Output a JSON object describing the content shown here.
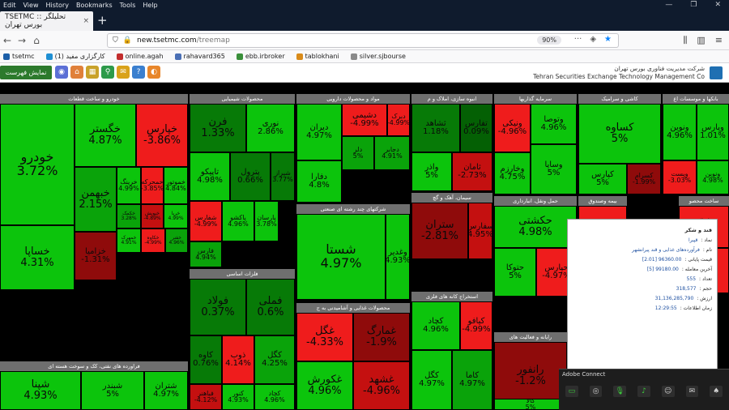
{
  "menubar": {
    "items": [
      "Edit",
      "View",
      "History",
      "Bookmarks",
      "Tools",
      "Help"
    ]
  },
  "tab": {
    "title": "TSETMC :: تحلیلگر بورس تهران",
    "close": "×"
  },
  "navbar": {
    "url_host": "new.tsetmc.com",
    "url_path": "/treemap",
    "zoom": "90%"
  },
  "bookmarks": [
    {
      "label": "tsetmc",
      "color": "#1b5ea8"
    },
    {
      "label": "کارگزاری مفید (1)",
      "color": "#1f8fd3"
    },
    {
      "label": "online.agah",
      "color": "#c22d2d"
    },
    {
      "label": "rahavard365",
      "color": "#4a6fb5"
    },
    {
      "label": "ebb.irbroker",
      "color": "#3a8f3a"
    },
    {
      "label": "tablokhani",
      "color": "#d98b1a"
    },
    {
      "label": "silver.sjbourse",
      "color": "#8a8a8a"
    }
  ],
  "site": {
    "show_button": "نمایش فهرست",
    "brand_fa": "شرکت مدیریت فناوری بورس تهران",
    "brand_en": "Tehran Securities Exchange Technology Management Co"
  },
  "sectors": [
    {
      "title": "خودرو و ساخت قطعات",
      "cells": [
        {
          "name": "خودرو",
          "pct": "3.72%",
          "c": "g1"
        },
        {
          "name": "خگستر",
          "pct": "4.87%",
          "c": "g1"
        },
        {
          "name": "خپارس",
          "pct": "-3.86%",
          "c": "r1"
        },
        {
          "name": "خساپا",
          "pct": "4.31%",
          "c": "g1"
        },
        {
          "name": "خبهمن",
          "pct": "2.15%",
          "c": "g2"
        },
        {
          "name": "خرینگ",
          "pct": "4.99%",
          "c": "g1"
        },
        {
          "name": "خمحرکه",
          "pct": "-3.85%",
          "c": "r1"
        },
        {
          "name": "خموتور",
          "pct": "4.84%",
          "c": "g1"
        },
        {
          "name": "خکمک",
          "pct": "3.28%",
          "c": "g2"
        },
        {
          "name": "خزامیا",
          "pct": "-1.31%",
          "c": "r3"
        },
        {
          "name": "خمهرک",
          "pct": "4.91%",
          "c": "g1"
        },
        {
          "name": "خریا",
          "pct": "4.99%",
          "c": "g1"
        },
        {
          "name": "خپویش",
          "pct": "-4.89%",
          "c": "r2"
        },
        {
          "name": "خکاوه",
          "pct": "-4.99%",
          "c": "r1"
        },
        {
          "name": "خفنر",
          "pct": "4.96%",
          "c": "g2"
        }
      ]
    },
    {
      "title": "فراورده های نفتی، کک و سوخت هسته ای",
      "cells": [
        {
          "name": "شپنا",
          "pct": "4.93%",
          "c": "g1"
        },
        {
          "name": "شبندر",
          "pct": "5%",
          "c": "g1"
        },
        {
          "name": "شتران",
          "pct": "4.97%",
          "c": "g1"
        },
        {
          "name": "شبریز",
          "pct": "3.23%",
          "c": "g1"
        },
        {
          "name": "ونفت",
          "pct": "-2.24%",
          "c": "r2"
        }
      ]
    },
    {
      "title": "محصولات شیمیایی",
      "cells": [
        {
          "name": "فرن",
          "pct": "1.33%",
          "c": "g3"
        },
        {
          "name": "نوری",
          "pct": "2.86%",
          "c": "g1"
        },
        {
          "name": "تاپیکو",
          "pct": "4.98%",
          "c": "g1"
        },
        {
          "name": "پترول",
          "pct": "0.66%",
          "c": "g3"
        },
        {
          "name": "شیراز",
          "pct": "3.77%",
          "c": "g3"
        },
        {
          "name": "شفارس",
          "pct": "-4.99%",
          "c": "r1"
        },
        {
          "name": "پاکشو",
          "pct": "4.96%",
          "c": "g1"
        },
        {
          "name": "پارسان",
          "pct": "3.78%",
          "c": "g1"
        },
        {
          "name": "فارس",
          "pct": "4.94%",
          "c": "g2"
        }
      ]
    },
    {
      "title": "فلزات اساسی",
      "cells": [
        {
          "name": "فولاد",
          "pct": "0.37%",
          "c": "g3"
        },
        {
          "name": "فملی",
          "pct": "0.6%",
          "c": "g3"
        },
        {
          "name": "کاوه",
          "pct": "0.76%",
          "c": "g3"
        },
        {
          "name": "ذوب",
          "pct": "4.14%",
          "c": "r1"
        },
        {
          "name": "کگل",
          "pct": "4.25%",
          "c": "g2"
        },
        {
          "name": "فباهنر",
          "pct": "-4.12%",
          "c": "r2"
        },
        {
          "name": "کچاد",
          "pct": "4.96%",
          "c": "g1"
        },
        {
          "name": "کنور",
          "pct": "4.93%",
          "c": "g1"
        }
      ]
    },
    {
      "title": "مواد و محصولات دارویی",
      "cells": [
        {
          "name": "دیران",
          "pct": "4.97%",
          "c": "g1"
        },
        {
          "name": "دشیمی",
          "pct": "-4.99%",
          "c": "r1"
        },
        {
          "name": "دبرک",
          "pct": "-4.99%",
          "c": "r1"
        },
        {
          "name": "دفارا",
          "pct": "4.8%",
          "c": "g1"
        },
        {
          "name": "دلر",
          "pct": "5%",
          "c": "g2"
        },
        {
          "name": "دجابر",
          "pct": "4.91%",
          "c": "g2"
        }
      ]
    },
    {
      "title": "شرکتهای چند رشته ای صنعتی",
      "cells": [
        {
          "name": "شستا",
          "pct": "4.97%",
          "c": "g1"
        },
        {
          "name": "وغدیر",
          "pct": "4.93%",
          "c": "g1"
        }
      ]
    },
    {
      "title": "محصولات غذایی و آشامیدنی به ج",
      "cells": [
        {
          "name": "غگل",
          "pct": "-4.33%",
          "c": "r1"
        },
        {
          "name": "غمارگ",
          "pct": "-1.9%",
          "c": "r3"
        },
        {
          "name": "غکورش",
          "pct": "4.96%",
          "c": "g1"
        },
        {
          "name": "غشهد",
          "pct": "-4.96%",
          "c": "r2"
        },
        {
          "name": "غدشت",
          "pct": "2.21%",
          "c": "g3"
        }
      ]
    },
    {
      "title": "انبوه سازی، املاک و م",
      "cells": [
        {
          "name": "ثشاهد",
          "pct": "1.18%",
          "c": "g3"
        },
        {
          "name": "تفارس",
          "pct": "0.09%",
          "c": "g4"
        },
        {
          "name": "واذر",
          "pct": "5%",
          "c": "g1"
        },
        {
          "name": "ثامان",
          "pct": "-2.73%",
          "c": "r2"
        }
      ]
    },
    {
      "title": "سیمان، آهک و گچ",
      "cells": [
        {
          "name": "ستران",
          "pct": "-2.81%",
          "c": "r3"
        },
        {
          "name": "سفارس",
          "pct": "4.95%",
          "c": "r2"
        }
      ]
    },
    {
      "title": "استخراج کانه های فلزی",
      "cells": [
        {
          "name": "کچاد",
          "pct": "4.96%",
          "c": "g1"
        },
        {
          "name": "کیافو",
          "pct": "-4.99%",
          "c": "r1"
        },
        {
          "name": "کگل",
          "pct": "4.97%",
          "c": "g1"
        },
        {
          "name": "کاما",
          "pct": "4.97%",
          "c": "g2"
        }
      ]
    },
    {
      "title": "سرمایه گذاریها",
      "cells": [
        {
          "name": "ونیکی",
          "pct": "-4.96%",
          "c": "r1"
        },
        {
          "name": "وتوصا",
          "pct": "4.96%",
          "c": "g1"
        },
        {
          "name": "وخارزم",
          "pct": "4.75%",
          "c": "g1"
        },
        {
          "name": "وساپا",
          "pct": "5%",
          "c": "g1"
        }
      ]
    },
    {
      "title": "کاشی و سرامیک",
      "cells": [
        {
          "name": "کساوه",
          "pct": "5%",
          "c": "g1"
        },
        {
          "name": "کپارس",
          "pct": "5%",
          "c": "g1"
        },
        {
          "name": "کسرام",
          "pct": "-1.99%",
          "c": "r3"
        }
      ]
    },
    {
      "title": "بانکها و موسسات اع",
      "cells": [
        {
          "name": "ونوین",
          "pct": "4.96%",
          "c": "g1"
        },
        {
          "name": "وپارس",
          "pct": "1.01%",
          "c": "g1"
        },
        {
          "name": "وپست",
          "pct": "-3.03%",
          "c": "r1"
        },
        {
          "name": "ونوین",
          "pct": "4.98%",
          "c": "g1"
        }
      ]
    },
    {
      "title": "حمل ونقل، انبارداری",
      "cells": [
        {
          "name": "حکشتی",
          "pct": "4.98%",
          "c": "g1"
        },
        {
          "name": "حتوکا",
          "pct": "5%",
          "c": "g1"
        },
        {
          "name": "حپارس",
          "pct": "-4.97%",
          "c": "r1"
        }
      ]
    },
    {
      "title": "بیمه وصندوق",
      "cells": [
        {
          "name": "ملت",
          "pct": "",
          "c": "r1"
        },
        {
          "name": "البرز",
          "pct": "",
          "c": "r2"
        }
      ]
    },
    {
      "title": "رایانه و فعالیت های",
      "cells": [
        {
          "name": "رانفور",
          "pct": "-1.2%",
          "c": "r3"
        }
      ]
    },
    {
      "title": "ساخت محصو",
      "cells": [
        {
          "name": "فاراک",
          "pct": "-4.9%",
          "c": "r1"
        },
        {
          "name": "فلذر",
          "pct": "-3.73%",
          "c": "r1"
        }
      ]
    },
    {
      "title": "فعالیتهای کمکی به ن",
      "cells": [
        {
          "name": "کالا",
          "pct": "5%",
          "c": "g1"
        },
        {
          "name": "سیزیا",
          "pct": "4.95%",
          "c": "g2"
        }
      ]
    }
  ],
  "tooltip": {
    "title": "قند و شکر",
    "rows": [
      {
        "label": "نماد :",
        "value": "قپیرا"
      },
      {
        "label": "نام :",
        "value": "فرآورده‌های غذایی و قند پیرانشهر"
      },
      {
        "label": "قیمت پایانی :",
        "value": "96360.00 [2.01]"
      },
      {
        "label": "آخرین معامله :",
        "value": "99180.00 [5]"
      },
      {
        "label": "تعداد :",
        "value": "555"
      },
      {
        "label": "حجم :",
        "value": "318,577"
      },
      {
        "label": "ارزش :",
        "value": "31,136,285,790"
      },
      {
        "label": "زمان اطلاعات :",
        "value": "12:29:55"
      }
    ]
  },
  "adobe": {
    "title": "Adobe Connect"
  }
}
